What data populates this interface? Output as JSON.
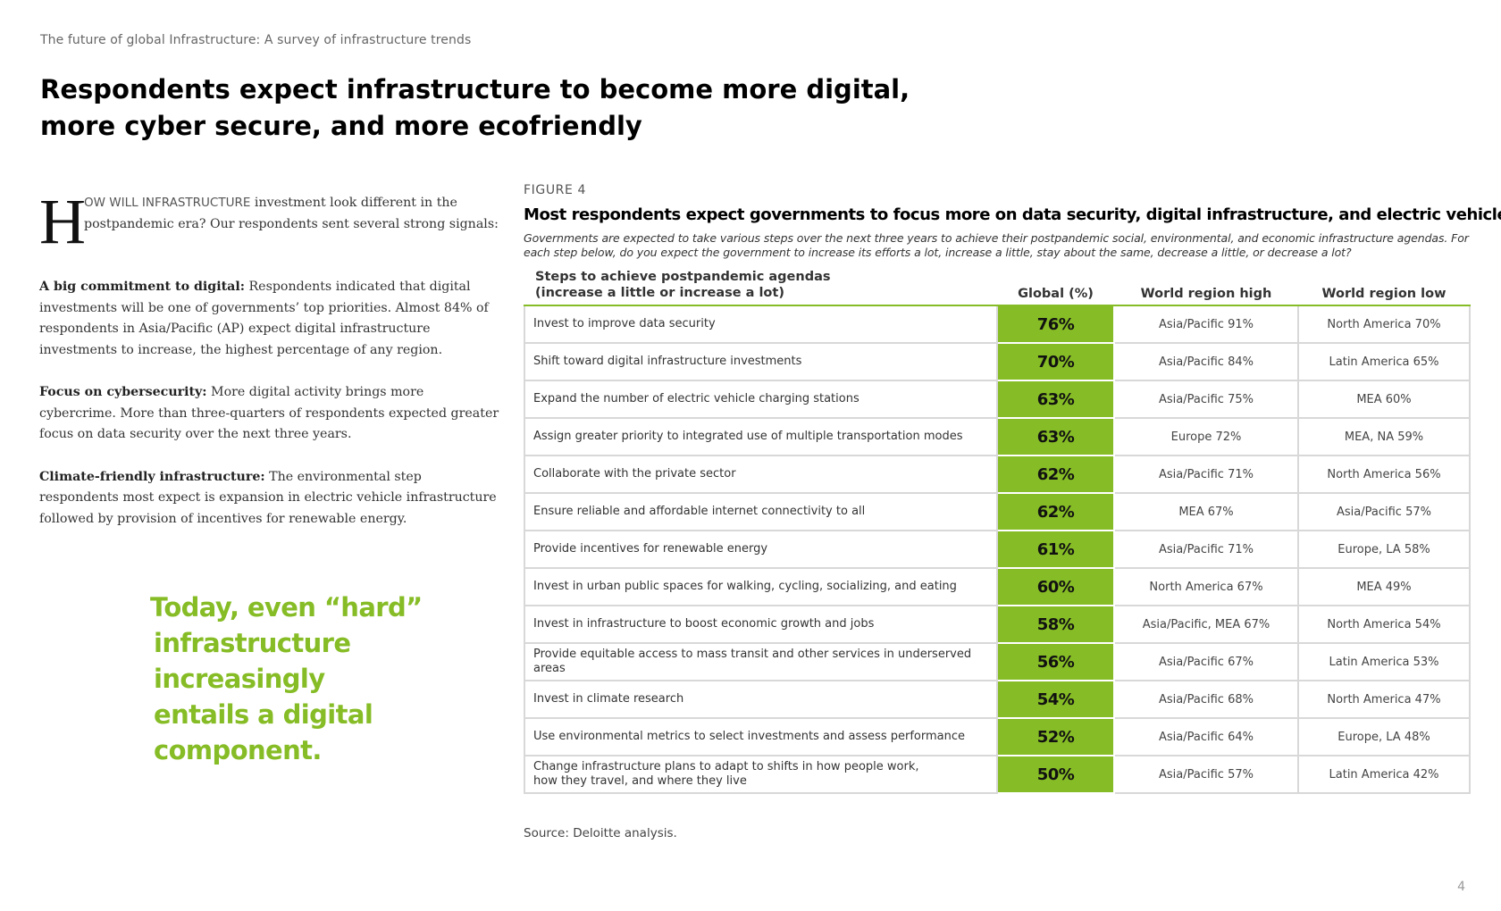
{
  "header": {
    "running_head": "The future of global Infrastructure: A survey of infrastructure trends",
    "title_line1": "Respondents expect infrastructure to become more digital,",
    "title_line2": "more cyber secure, and more ecofriendly"
  },
  "body": {
    "drop_cap": "H",
    "lead_caps": "OW WILL INFRASTRUCTURE",
    "lead_rest": " investment look different in the postpandemic era? Our respondents sent several strong signals:",
    "paragraphs": [
      {
        "heading": "A big commitment to digital:",
        "text": " Respondents indicated that digital investments will be one of governments’ top priorities. Almost 84% of respondents in Asia/Pacific (AP) expect digital infrastructure investments to increase, the highest percentage of any region."
      },
      {
        "heading": "Focus on cybersecurity:",
        "text": " More digital activity brings more cybercrime. More than three-quarters of respondents expected greater focus on data security over the next three years."
      },
      {
        "heading": "Climate-friendly infrastructure:",
        "text": " The environmental step respondents most expect is expansion in electric vehicle infrastructure followed by provision of incentives for renewable energy."
      }
    ]
  },
  "pullquote": {
    "line1": "Today, even “hard”",
    "line2": "infrastructure increasingly",
    "line3": "entails a digital component."
  },
  "figure": {
    "label": "FIGURE 4",
    "title": "Most respondents expect governments to focus more on data security, digital infrastructure, and electric vehicles",
    "description": "Governments are expected to take various steps over the next three years to achieve their postpandemic social, environmental, and economic infrastructure agendas. For each step below, do you expect the government to increase its efforts a lot, increase a little, stay about the same, decrease a little, or decrease a lot?",
    "columns": {
      "steps_line1": "Steps to achieve postpandemic agendas",
      "steps_line2": "(increase a little or increase a lot)",
      "global": "Global (%)",
      "high": "World region high",
      "low": "World region low"
    },
    "rows": [
      {
        "step": "Invest to improve data security",
        "global": "76%",
        "high": "Asia/Pacific 91%",
        "low": "North America 70%"
      },
      {
        "step": "Shift toward digital infrastructure investments",
        "global": "70%",
        "high": "Asia/Pacific 84%",
        "low": "Latin America 65%"
      },
      {
        "step": "Expand the number of electric vehicle charging stations",
        "global": "63%",
        "high": "Asia/Pacific 75%",
        "low": "MEA 60%"
      },
      {
        "step": "Assign greater priority to integrated use of multiple transportation modes",
        "global": "63%",
        "high": "Europe 72%",
        "low": "MEA, NA 59%"
      },
      {
        "step": "Collaborate with the private sector",
        "global": "62%",
        "high": "Asia/Pacific 71%",
        "low": "North America 56%"
      },
      {
        "step": "Ensure reliable and affordable internet connectivity to all",
        "global": "62%",
        "high": "MEA 67%",
        "low": "Asia/Pacific 57%"
      },
      {
        "step": "Provide incentives for renewable energy",
        "global": "61%",
        "high": "Asia/Pacific 71%",
        "low": "Europe, LA 58%"
      },
      {
        "step": "Invest in urban public spaces for walking, cycling, socializing, and eating",
        "global": "60%",
        "high": "North America 67%",
        "low": "MEA 49%"
      },
      {
        "step": "Invest in infrastructure to boost economic growth and jobs",
        "global": "58%",
        "high": "Asia/Pacific, MEA 67%",
        "low": "North America 54%"
      },
      {
        "step": "Provide equitable access to mass transit and other services in underserved areas",
        "global": "56%",
        "high": "Asia/Pacific 67%",
        "low": "Latin America 53%"
      },
      {
        "step": "Invest in climate research",
        "global": "54%",
        "high": "Asia/Pacific 68%",
        "low": "North America 47%"
      },
      {
        "step": "Use environmental metrics to select investments and assess performance",
        "global": "52%",
        "high": "Asia/Pacific 64%",
        "low": "Europe, LA 48%"
      },
      {
        "step_line1": "Change infrastructure plans to adapt to shifts in how people work,",
        "step_line2": "how they travel, and where they live",
        "global": "50%",
        "high": "Asia/Pacific 57%",
        "low": "Latin America 42%"
      }
    ],
    "source": "Source: Deloitte analysis."
  },
  "footer": {
    "page_number": "4"
  },
  "colors": {
    "accent_green": "#86bc25",
    "rule_gray": "#d8d8d8"
  }
}
